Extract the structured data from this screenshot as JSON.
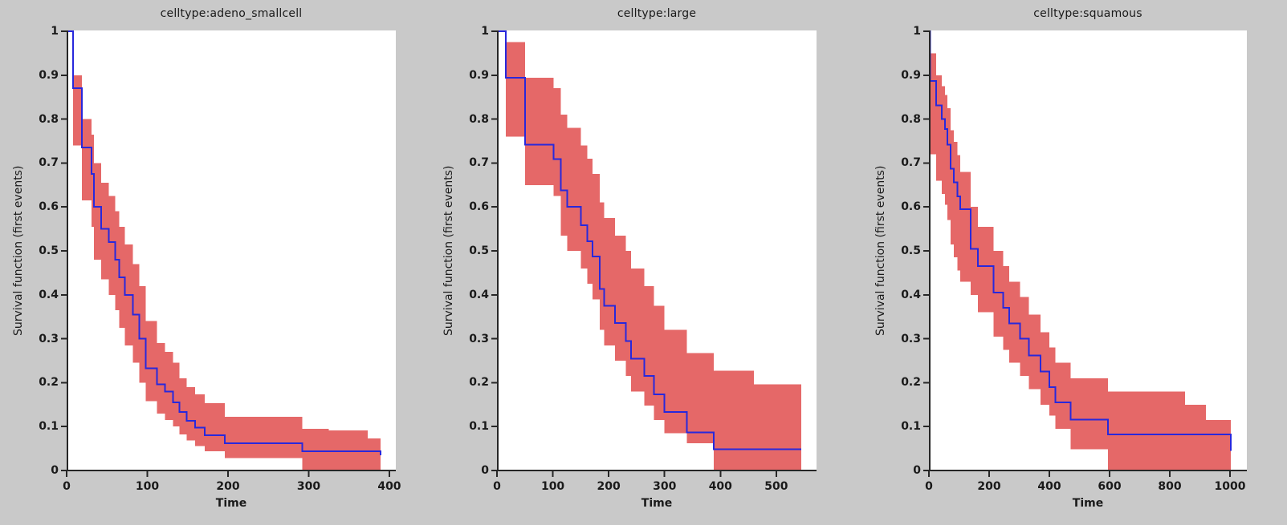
{
  "figure": {
    "background": "#c9c9c9",
    "plot_background": "#ffffff",
    "axis_color": "#262626",
    "text_color": "#1a1a1a",
    "line_color": "#2828dc",
    "band_color": "#e56868"
  },
  "chart_data": [
    {
      "type": "line",
      "step": true,
      "title": "celltype:adeno_smallcell",
      "xlabel": "Time",
      "ylabel": "Survival function (first events)",
      "xlim": [
        0,
        408
      ],
      "ylim": [
        0,
        1
      ],
      "grid": false,
      "legend": "none",
      "xticks": [
        0,
        100,
        200,
        300,
        400
      ],
      "xtick_labels": [
        "0",
        "100",
        "200",
        "300",
        "400"
      ],
      "yticks": [
        0,
        0.1,
        0.2,
        0.3,
        0.4,
        0.5,
        0.6,
        0.7,
        0.8,
        0.9,
        1
      ],
      "ytick_labels": [
        "0",
        "0.1",
        "0.2",
        "0.3",
        "0.4",
        "0.5",
        "0.6",
        "0.7",
        "0.8",
        "0.9",
        "1"
      ],
      "x": [
        0,
        8,
        19,
        31,
        34,
        43,
        52,
        60,
        65,
        72,
        82,
        90,
        98,
        112,
        122,
        132,
        140,
        149,
        159,
        171,
        196,
        292,
        325,
        373,
        389
      ],
      "survival": [
        1,
        0.87,
        0.735,
        0.675,
        0.6,
        0.55,
        0.52,
        0.48,
        0.44,
        0.4,
        0.355,
        0.3,
        0.233,
        0.196,
        0.18,
        0.155,
        0.133,
        0.113,
        0.098,
        0.08,
        0.062,
        0.044,
        0.044,
        0.044,
        0.035
      ],
      "ci_upper": [
        1,
        0.9,
        0.8,
        0.765,
        0.7,
        0.655,
        0.625,
        0.59,
        0.555,
        0.515,
        0.47,
        0.42,
        0.34,
        0.29,
        0.27,
        0.245,
        0.21,
        0.19,
        0.173,
        0.153,
        0.122,
        0.095,
        0.091,
        0.073,
        0.073
      ],
      "ci_lower": [
        1,
        0.74,
        0.615,
        0.555,
        0.48,
        0.435,
        0.4,
        0.365,
        0.325,
        0.285,
        0.245,
        0.2,
        0.158,
        0.13,
        0.115,
        0.1,
        0.082,
        0.068,
        0.056,
        0.044,
        0.028,
        0,
        0,
        0,
        0
      ],
      "series": [
        {
          "name": "survival-curve",
          "color": "#2828dc"
        },
        {
          "name": "confidence-band",
          "color": "#e56868"
        }
      ]
    },
    {
      "type": "line",
      "step": true,
      "title": "celltype:large",
      "xlabel": "Time",
      "ylabel": "Survival function (first events)",
      "xlim": [
        0,
        572
      ],
      "ylim": [
        0,
        1
      ],
      "grid": false,
      "legend": "none",
      "xticks": [
        0,
        100,
        200,
        300,
        400,
        500
      ],
      "xtick_labels": [
        "0",
        "100",
        "200",
        "300",
        "400",
        "500"
      ],
      "yticks": [
        0,
        0.1,
        0.2,
        0.3,
        0.4,
        0.5,
        0.6,
        0.7,
        0.8,
        0.9,
        1
      ],
      "ytick_labels": [
        "0",
        "0.1",
        "0.2",
        "0.3",
        "0.4",
        "0.5",
        "0.6",
        "0.7",
        "0.8",
        "0.9",
        "1"
      ],
      "x": [
        0,
        16,
        50,
        101,
        114,
        126,
        150,
        162,
        171,
        184,
        192,
        211,
        231,
        240,
        264,
        281,
        300,
        340,
        388,
        460,
        545
      ],
      "survival": [
        1,
        0.894,
        0.742,
        0.709,
        0.638,
        0.6,
        0.558,
        0.522,
        0.487,
        0.413,
        0.375,
        0.336,
        0.295,
        0.255,
        0.215,
        0.173,
        0.133,
        0.087,
        0.048,
        0.048,
        0.048
      ],
      "ci_upper": [
        1,
        0.975,
        0.894,
        0.87,
        0.81,
        0.78,
        0.74,
        0.71,
        0.675,
        0.61,
        0.575,
        0.535,
        0.5,
        0.46,
        0.42,
        0.375,
        0.32,
        0.267,
        0.227,
        0.196,
        0.196
      ],
      "ci_lower": [
        1,
        0.76,
        0.65,
        0.625,
        0.535,
        0.5,
        0.46,
        0.425,
        0.39,
        0.32,
        0.285,
        0.25,
        0.215,
        0.18,
        0.148,
        0.115,
        0.085,
        0.062,
        0,
        0,
        0
      ],
      "series": [
        {
          "name": "survival-curve",
          "color": "#2828dc"
        },
        {
          "name": "confidence-band",
          "color": "#e56868"
        }
      ]
    },
    {
      "type": "line",
      "step": true,
      "title": "celltype:squamous",
      "xlabel": "Time",
      "ylabel": "Survival function (first events)",
      "xlim": [
        0,
        1056
      ],
      "ylim": [
        0,
        1
      ],
      "grid": false,
      "legend": "none",
      "xticks": [
        0,
        200,
        400,
        600,
        800,
        1000
      ],
      "xtick_labels": [
        "0",
        "200",
        "400",
        "600",
        "800",
        "1000"
      ],
      "yticks": [
        0,
        0.1,
        0.2,
        0.3,
        0.4,
        0.5,
        0.6,
        0.7,
        0.8,
        0.9,
        1
      ],
      "ytick_labels": [
        "0",
        "0.1",
        "0.2",
        "0.3",
        "0.4",
        "0.5",
        "0.6",
        "0.7",
        "0.8",
        "0.9",
        "1"
      ],
      "x": [
        0,
        4,
        24,
        42,
        53,
        61,
        72,
        83,
        94,
        104,
        139,
        163,
        214,
        246,
        266,
        302,
        332,
        371,
        400,
        420,
        470,
        595,
        850,
        920,
        1003
      ],
      "survival": [
        1,
        0.887,
        0.831,
        0.8,
        0.777,
        0.742,
        0.687,
        0.656,
        0.624,
        0.595,
        0.505,
        0.465,
        0.405,
        0.37,
        0.335,
        0.3,
        0.262,
        0.225,
        0.19,
        0.155,
        0.116,
        0.082,
        0.082,
        0.082,
        0.045
      ],
      "ci_upper": [
        1,
        0.95,
        0.9,
        0.875,
        0.855,
        0.825,
        0.775,
        0.748,
        0.718,
        0.68,
        0.6,
        0.555,
        0.5,
        0.465,
        0.43,
        0.395,
        0.355,
        0.315,
        0.28,
        0.245,
        0.21,
        0.18,
        0.15,
        0.115,
        0.115
      ],
      "ci_lower": [
        1,
        0.72,
        0.66,
        0.63,
        0.605,
        0.57,
        0.515,
        0.485,
        0.455,
        0.43,
        0.4,
        0.36,
        0.305,
        0.275,
        0.245,
        0.215,
        0.185,
        0.15,
        0.125,
        0.095,
        0.048,
        0,
        0,
        0,
        0
      ],
      "series": [
        {
          "name": "survival-curve",
          "color": "#2828dc"
        },
        {
          "name": "confidence-band",
          "color": "#e56868"
        }
      ]
    }
  ]
}
